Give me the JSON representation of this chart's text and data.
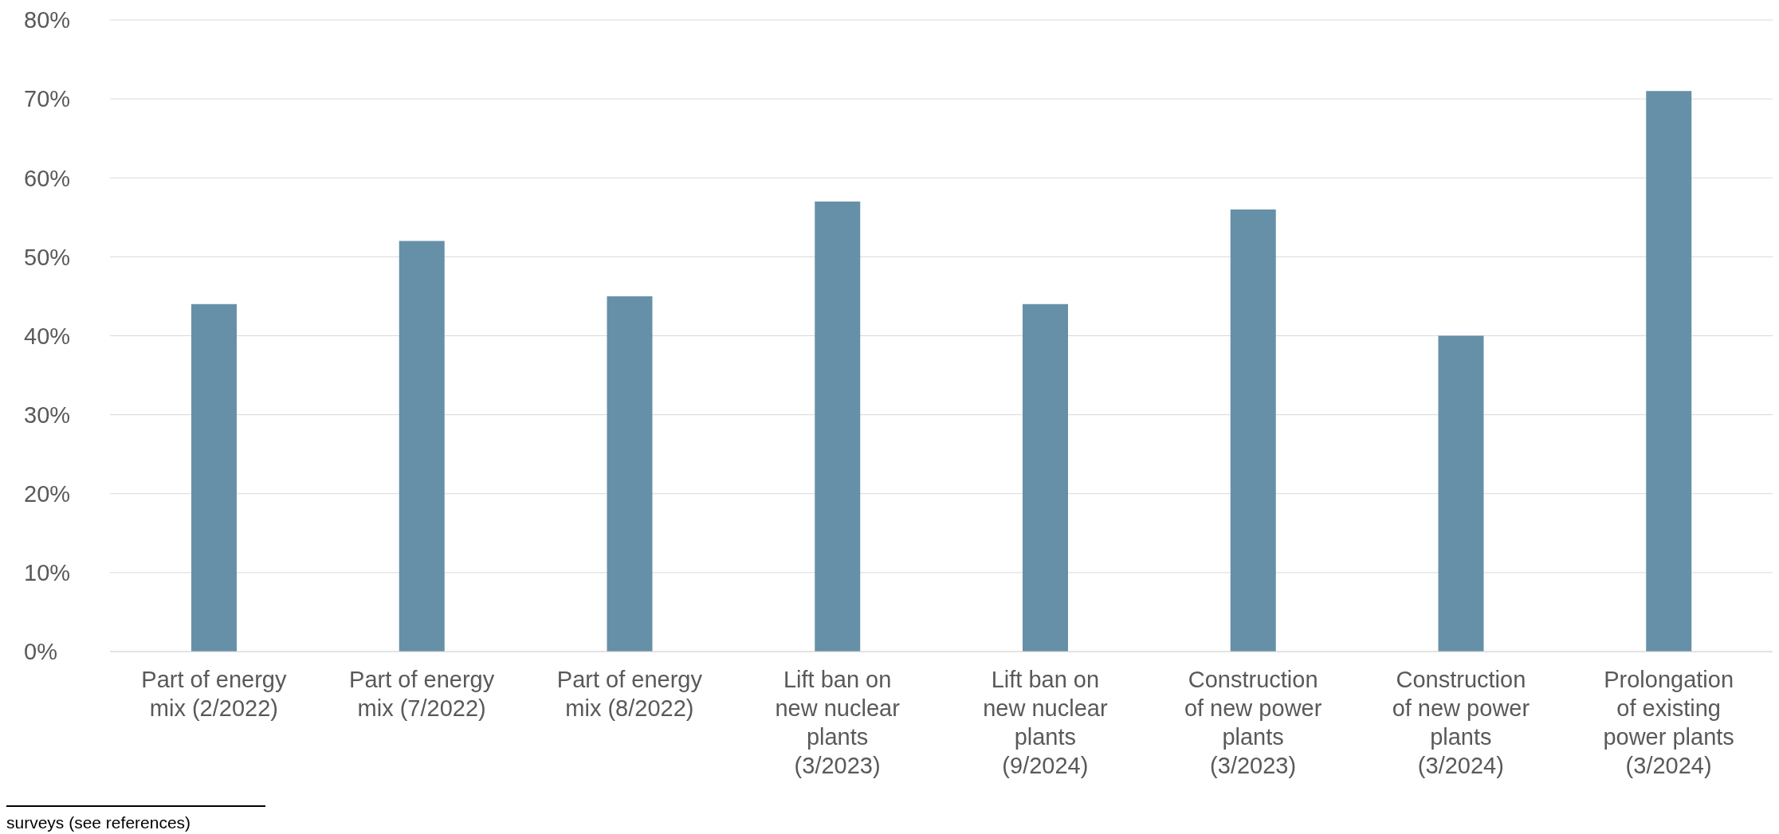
{
  "chart_data": {
    "type": "bar",
    "categories": [
      "Part of energy mix (2/2022)",
      "Part of energy mix (7/2022)",
      "Part of energy mix (8/2022)",
      "Lift ban on new nuclear plants (3/2023)",
      "Lift ban on new nuclear plants (9/2024)",
      "Construction of new power plants (3/2023)",
      "Construction of new power plants (3/2024)",
      "Prolongation of existing power plants (3/2024)"
    ],
    "values": [
      44,
      52,
      45,
      57,
      44,
      56,
      40,
      71
    ],
    "color": "#6690a7",
    "ylim": [
      0,
      80
    ],
    "yticks": [
      {
        "value": 0,
        "label": "0%"
      },
      {
        "value": 10,
        "label": "10%"
      },
      {
        "value": 20,
        "label": "20%"
      },
      {
        "value": 30,
        "label": "30%"
      },
      {
        "value": 40,
        "label": "40%"
      },
      {
        "value": 50,
        "label": "50%"
      },
      {
        "value": 60,
        "label": "60%"
      },
      {
        "value": 70,
        "label": "70%"
      },
      {
        "value": 80,
        "label": "80%"
      }
    ],
    "grid": "y",
    "annotations": [
      "surveys (see references)"
    ]
  }
}
